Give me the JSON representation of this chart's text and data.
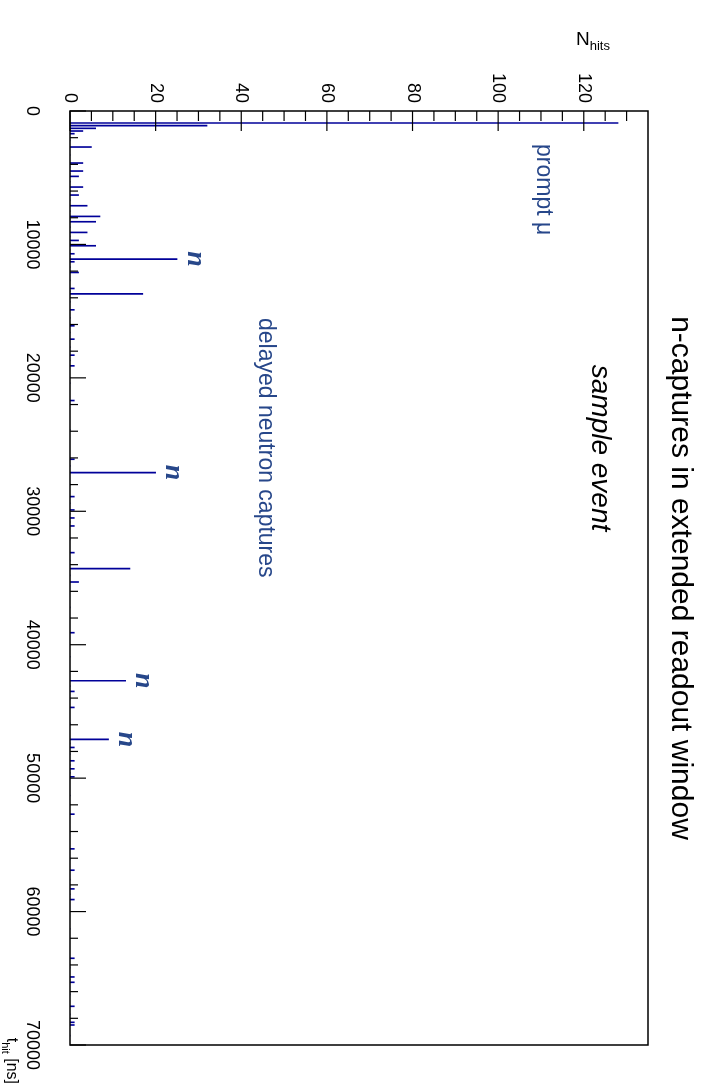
{
  "chart_data": {
    "type": "histogram",
    "orientation": "horizontal",
    "title": "n-captures in extended readout window",
    "subtitle": "sample event",
    "xlabel": "N$_{hits}$",
    "ylabel": "t$_{hit}$ [ns]",
    "color": "#000099",
    "bins": [
      0,
      800,
      1000,
      1200,
      1400,
      1600,
      1800,
      2600,
      2800,
      3800,
      4000,
      4400,
      4600,
      4800,
      5000,
      5600,
      5800,
      6200,
      6400,
      7000,
      7200,
      7800,
      8000,
      8200,
      8400,
      9000,
      9200,
      9600,
      9800,
      10000,
      10200,
      10600,
      10800,
      11000,
      11200,
      11400,
      12000,
      12200,
      13200,
      13400,
      13600,
      13800,
      14800,
      15000,
      16000,
      16200,
      17000,
      17200,
      18200,
      18400,
      19000,
      19200,
      21600,
      21800,
      26000,
      26200,
      27000,
      27200,
      28800,
      29000,
      29800,
      30000,
      30400,
      30600,
      31000,
      31200,
      33000,
      33200,
      34200,
      34400,
      35200,
      35400,
      39000,
      39200,
      42600,
      42800,
      43400,
      43600,
      44600,
      44800,
      47000,
      47200,
      47600,
      47800,
      48600,
      48800,
      49200,
      49400,
      49800,
      50000,
      52600,
      52800,
      55200,
      55400,
      56800,
      57000,
      58200,
      58400,
      59000,
      59200,
      63400,
      63600,
      64800,
      65000,
      65200,
      65400,
      67000,
      67200,
      68200,
      68400,
      68600,
      70000
    ],
    "values": [
      0,
      128,
      32,
      6,
      3,
      1,
      0,
      5,
      0,
      3,
      0,
      3,
      0,
      2,
      0,
      3,
      0,
      2,
      0,
      4,
      0,
      7,
      0,
      6,
      0,
      4,
      0,
      2,
      0,
      6,
      0,
      1,
      0,
      25,
      1,
      0,
      2,
      0,
      1,
      0,
      17,
      0,
      1,
      0,
      1,
      0,
      1,
      0,
      1,
      0,
      1,
      0,
      1,
      0,
      1,
      0,
      20,
      0,
      1,
      0,
      1,
      0,
      1,
      0,
      1,
      0,
      1,
      0,
      14,
      0,
      2,
      0,
      1,
      0,
      13,
      0,
      1,
      0,
      1,
      0,
      9,
      0,
      1,
      0,
      1,
      0,
      1,
      0,
      1,
      0,
      1,
      0,
      1,
      0,
      1,
      0,
      1,
      0,
      1,
      0,
      1,
      0,
      1,
      0,
      1,
      0,
      1,
      0,
      1,
      1,
      0
    ],
    "ylim": [
      70000,
      0
    ],
    "xlim": [
      0,
      135
    ],
    "yticks": [
      0,
      {
        "value": 2000,
        "label": null
      },
      {
        "value": 4000,
        "label": null
      },
      {
        "value": 6000,
        "label": null
      },
      {
        "value": 8000,
        "label": null
      },
      10000,
      {
        "value": 12000,
        "label": null
      },
      {
        "value": 14000,
        "label": null
      },
      {
        "value": 16000,
        "label": null
      },
      {
        "value": 18000,
        "label": null
      },
      20000,
      {
        "value": 22000,
        "label": null
      },
      {
        "value": 24000,
        "label": null
      },
      {
        "value": 26000,
        "label": null
      },
      {
        "value": 28000,
        "label": null
      },
      30000,
      {
        "value": 32000,
        "label": null
      },
      {
        "value": 34000,
        "label": null
      },
      {
        "value": 36000,
        "label": null
      },
      {
        "value": 38000,
        "label": null
      },
      40000,
      {
        "value": 42000,
        "label": null
      },
      {
        "value": 44000,
        "label": null
      },
      {
        "value": 46000,
        "label": null
      },
      {
        "value": 48000,
        "label": null
      },
      50000,
      {
        "value": 52000,
        "label": null
      },
      {
        "value": 54000,
        "label": null
      },
      {
        "value": 56000,
        "label": null
      },
      {
        "value": 58000,
        "label": null
      },
      60000,
      {
        "value": 62000,
        "label": null
      },
      {
        "value": 64000,
        "label": null
      },
      {
        "value": 66000,
        "label": null
      },
      {
        "value": 68000,
        "label": null
      },
      70000
    ],
    "xticks": [
      0,
      {
        "value": 5,
        "label": null
      },
      {
        "value": 10,
        "label": null
      },
      {
        "value": 15,
        "label": null
      },
      20,
      {
        "value": 25,
        "label": null
      },
      {
        "value": 30,
        "label": null
      },
      {
        "value": 35,
        "label": null
      },
      40,
      {
        "value": 45,
        "label": null
      },
      {
        "value": 50,
        "label": null
      },
      {
        "value": 55,
        "label": null
      },
      60,
      {
        "value": 65,
        "label": null
      },
      {
        "value": 70,
        "label": null
      },
      {
        "value": 75,
        "label": null
      },
      80,
      {
        "value": 85,
        "label": null
      },
      {
        "value": 90,
        "label": null
      },
      {
        "value": 95,
        "label": null
      },
      100,
      {
        "value": 105,
        "label": null
      },
      {
        "value": 110,
        "label": null
      },
      {
        "value": 115,
        "label": null
      },
      120,
      {
        "value": 125,
        "label": null
      },
      {
        "value": 130,
        "label": null
      }
    ],
    "annotations": [
      "prompt μ",
      "delayed neutron captures",
      {
        "text": "n",
        "x": 25,
        "y": 11100
      },
      {
        "text": "n",
        "x": 20,
        "y": 27100
      },
      {
        "text": "n",
        "x": 13,
        "y": 42700
      },
      {
        "text": "n",
        "x": 9,
        "y": 47100
      }
    ]
  }
}
